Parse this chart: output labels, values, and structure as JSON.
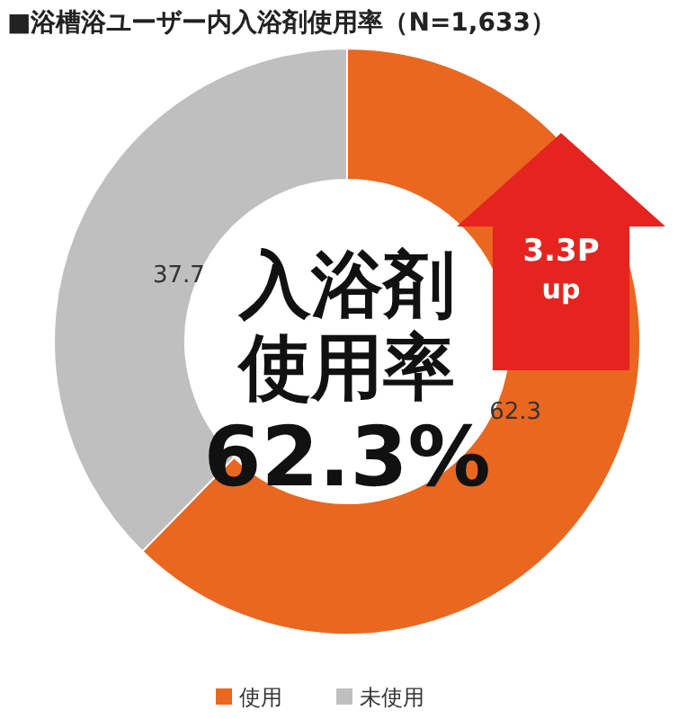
{
  "chart_data": {
    "type": "donut",
    "title": "■浴槽浴ユーザー内入浴剤使用率（N=1,633）",
    "categories": [
      "使用",
      "未使用"
    ],
    "values": [
      62.3,
      37.7
    ],
    "colors": [
      "#ea6720",
      "#bfbfbf"
    ],
    "data_labels": true,
    "legend": "bottom",
    "annotations": [
      "入浴剤",
      "使用率",
      "62.3%",
      "3.3P",
      "up"
    ]
  }
}
